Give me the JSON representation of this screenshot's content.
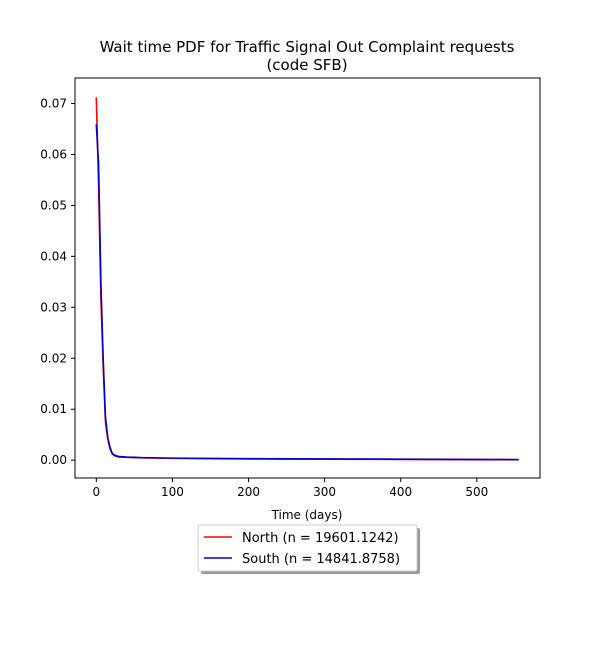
{
  "chart_data": {
    "type": "line",
    "title_line1": "Wait time PDF for Traffic Signal Out Complaint  requests",
    "title_line2": "(code SFB)",
    "xlabel": "Time (days)",
    "ylabel": "",
    "xlim": [
      -28,
      583
    ],
    "ylim": [
      -0.0035,
      0.075
    ],
    "xticks": [
      0,
      100,
      200,
      300,
      400,
      500
    ],
    "yticks": [
      0.0,
      0.01,
      0.02,
      0.03,
      0.04,
      0.05,
      0.06,
      0.07
    ],
    "ytick_labels": [
      "0.00",
      "0.01",
      "0.02",
      "0.03",
      "0.04",
      "0.05",
      "0.06",
      "0.07"
    ],
    "grid": false,
    "legend_position": "below",
    "series": [
      {
        "name": "North (n = 19601.1242)",
        "color": "#ff0000",
        "x": [
          0,
          3,
          6,
          9,
          12,
          15,
          18,
          21,
          25,
          30,
          40,
          50,
          60,
          80,
          100,
          150,
          200,
          300,
          400,
          500,
          555
        ],
        "y": [
          0.0712,
          0.054,
          0.032,
          0.0185,
          0.0075,
          0.0042,
          0.0022,
          0.0012,
          0.0008,
          0.0006,
          0.00055,
          0.0005,
          0.00045,
          0.0004,
          0.00035,
          0.0003,
          0.00025,
          0.0002,
          0.00015,
          0.0001,
          0.0001
        ]
      },
      {
        "name": "South (n = 14841.8758)",
        "color": "#0000cc",
        "x": [
          0,
          3,
          6,
          9,
          12,
          15,
          18,
          21,
          25,
          30,
          40,
          50,
          60,
          80,
          100,
          150,
          200,
          300,
          400,
          500,
          555
        ],
        "y": [
          0.0659,
          0.058,
          0.035,
          0.02,
          0.0085,
          0.0045,
          0.0025,
          0.0013,
          0.0009,
          0.0007,
          0.0006,
          0.00055,
          0.0005,
          0.00045,
          0.0004,
          0.00035,
          0.0003,
          0.00025,
          0.0002,
          0.00015,
          0.0001
        ]
      }
    ]
  }
}
